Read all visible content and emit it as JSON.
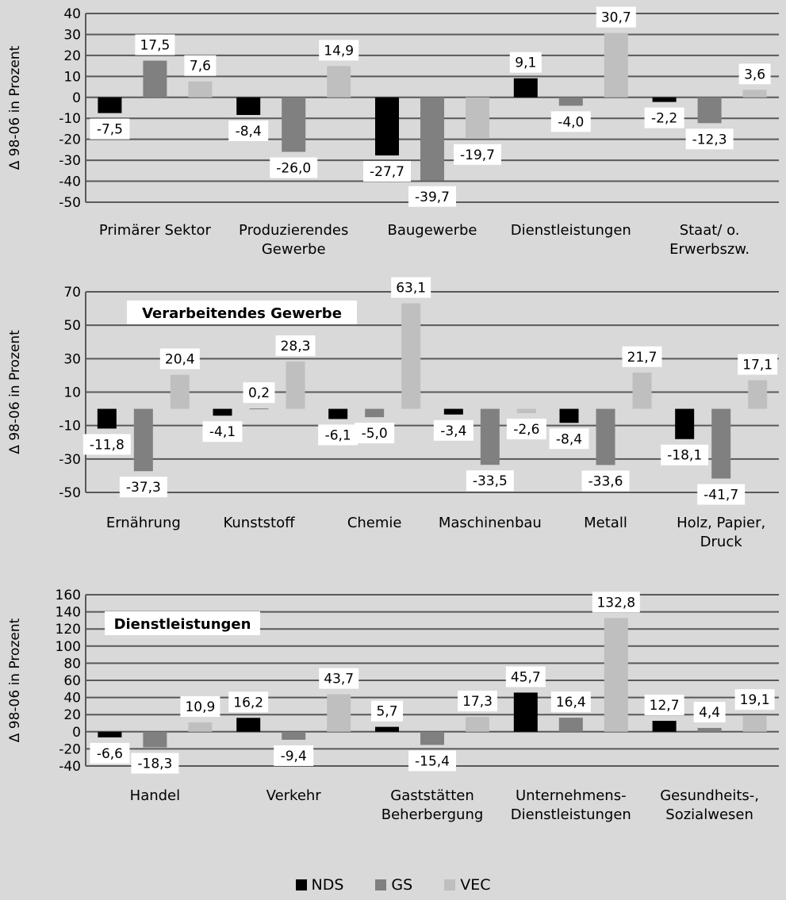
{
  "legend": [
    {
      "name": "NDS",
      "color": "#000000"
    },
    {
      "name": "GS",
      "color": "#808080"
    },
    {
      "name": "VEC",
      "color": "#bfbfbf"
    }
  ],
  "chart_data": [
    {
      "type": "bar",
      "title": "",
      "ylabel": "Δ 98-06  in Prozent",
      "ylim": [
        -50,
        40
      ],
      "yticks": [
        40,
        30,
        20,
        10,
        0,
        -10,
        -20,
        -30,
        -40,
        -50
      ],
      "categories": [
        "Primärer Sektor",
        "Produzierendes Gewerbe",
        "Baugewerbe",
        "Dienstleistungen",
        "Staat/ o. Erwerbszw."
      ],
      "category_lines": [
        [
          "Primärer Sektor"
        ],
        [
          "Produzierendes",
          "Gewerbe"
        ],
        [
          "Baugewerbe"
        ],
        [
          "Dienstleistungen"
        ],
        [
          "Staat/ o.",
          "Erwerbszw."
        ]
      ],
      "series": [
        {
          "name": "NDS",
          "values": [
            -7.5,
            -8.4,
            -27.7,
            9.1,
            -2.2
          ]
        },
        {
          "name": "GS",
          "values": [
            17.5,
            -26.0,
            -39.7,
            -4.0,
            -12.3
          ]
        },
        {
          "name": "VEC",
          "values": [
            7.6,
            14.9,
            -19.7,
            30.7,
            3.6
          ]
        }
      ],
      "data_labels": [
        [
          "-7,5",
          "-8,4",
          "-27,7",
          "9,1",
          "-2,2"
        ],
        [
          "17,5",
          "-26,0",
          "-39,7",
          "-4,0",
          "-12,3"
        ],
        [
          "7,6",
          "14,9",
          "-19,7",
          "30,7",
          "3,6"
        ]
      ]
    },
    {
      "type": "bar",
      "title": "Verarbeitendes Gewerbe",
      "ylabel": "Δ 98-06  in Prozent",
      "ylim": [
        -50,
        70
      ],
      "yticks": [
        70,
        50,
        30,
        10,
        -10,
        -30,
        -50
      ],
      "categories": [
        "Ernährung",
        "Kunststoff",
        "Chemie",
        "Maschinenbau",
        "Metall",
        "Holz, Papier, Druck"
      ],
      "category_lines": [
        [
          "Ernährung"
        ],
        [
          "Kunststoff"
        ],
        [
          "Chemie"
        ],
        [
          "Maschinenbau"
        ],
        [
          "Metall"
        ],
        [
          "Holz, Papier,",
          "Druck"
        ]
      ],
      "series": [
        {
          "name": "NDS",
          "values": [
            -11.8,
            -4.1,
            -6.1,
            -3.4,
            -8.4,
            -18.1
          ]
        },
        {
          "name": "GS",
          "values": [
            -37.3,
            0.2,
            -5.0,
            -33.5,
            -33.6,
            -41.7
          ]
        },
        {
          "name": "VEC",
          "values": [
            20.4,
            28.3,
            63.1,
            -2.6,
            21.7,
            17.1
          ]
        }
      ],
      "data_labels": [
        [
          "-11,8",
          "-4,1",
          "-6,1",
          "-3,4",
          "-8,4",
          "-18,1"
        ],
        [
          "-37,3",
          "0,2",
          "-5,0",
          "-33,5",
          "-33,6",
          "-41,7"
        ],
        [
          "20,4",
          "28,3",
          "63,1",
          "-2,6",
          "21,7",
          "17,1"
        ]
      ]
    },
    {
      "type": "bar",
      "title": "Dienstleistungen",
      "ylabel": "Δ 98-06 in Prozent",
      "ylim": [
        -40,
        160
      ],
      "yticks": [
        160,
        140,
        120,
        100,
        80,
        60,
        40,
        20,
        0,
        -20,
        -40
      ],
      "categories": [
        "Handel",
        "Verkehr",
        "Gaststätten Beherbergung",
        "Unternehmens-Dienstleistungen",
        "Gesundheits-, Sozialwesen"
      ],
      "category_lines": [
        [
          "Handel"
        ],
        [
          "Verkehr"
        ],
        [
          "Gaststätten",
          "Beherbergung"
        ],
        [
          "Unternehmens-",
          "Dienstleistungen"
        ],
        [
          "Gesundheits-,",
          "Sozialwesen"
        ]
      ],
      "series": [
        {
          "name": "NDS",
          "values": [
            -6.6,
            16.2,
            5.7,
            45.7,
            12.7
          ]
        },
        {
          "name": "GS",
          "values": [
            -18.3,
            -9.4,
            -15.4,
            16.4,
            4.4
          ]
        },
        {
          "name": "VEC",
          "values": [
            10.9,
            43.7,
            17.3,
            132.8,
            19.1
          ]
        }
      ],
      "data_labels": [
        [
          "-6,6",
          "16,2",
          "5,7",
          "45,7",
          "12,7"
        ],
        [
          "-18,3",
          "-9,4",
          "-15,4",
          "16,4",
          "4,4"
        ],
        [
          "10,9",
          "43,7",
          "17,3",
          "132,8",
          "19,1"
        ]
      ]
    }
  ]
}
